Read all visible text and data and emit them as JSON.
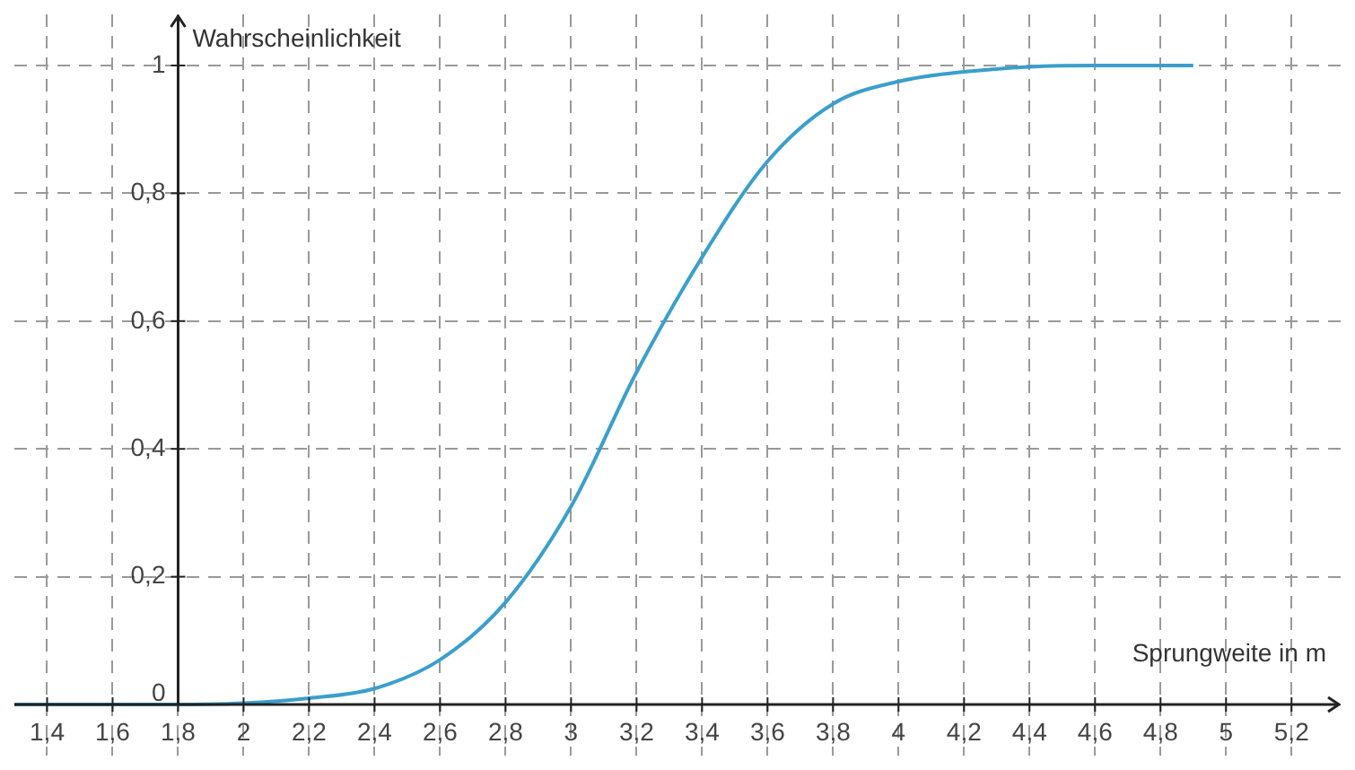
{
  "chart_data": {
    "type": "line",
    "xlabel": "Sprungweite in m",
    "ylabel": "Wahrscheinlichkeit",
    "series": [
      {
        "color": "#3a9fcc",
        "x": [
          1.3,
          1.8,
          2.0,
          2.2,
          2.4,
          2.6,
          2.8,
          3.0,
          3.2,
          3.4,
          3.6,
          3.8,
          4.0,
          4.2,
          4.4,
          4.6,
          4.9
        ],
        "values": [
          0,
          0,
          0.002,
          0.01,
          0.025,
          0.07,
          0.16,
          0.31,
          0.52,
          0.7,
          0.85,
          0.94,
          0.975,
          0.99,
          0.998,
          1,
          1
        ]
      }
    ],
    "xlim": [
      1.3,
      5.35
    ],
    "ylim": [
      -0.08,
      1.08
    ],
    "xticks": [
      {
        "value": 1.4,
        "label": "1,4"
      },
      {
        "value": 1.6,
        "label": "1,6"
      },
      {
        "value": 1.8,
        "label": "1,8"
      },
      2,
      {
        "value": 2.2,
        "label": "2,2"
      },
      {
        "value": 2.4,
        "label": "2,4"
      },
      {
        "value": 2.6,
        "label": "2,6"
      },
      {
        "value": 2.8,
        "label": "2,8"
      },
      3,
      {
        "value": 3.2,
        "label": "3,2"
      },
      {
        "value": 3.4,
        "label": "3,4"
      },
      {
        "value": 3.6,
        "label": "3,6"
      },
      {
        "value": 3.8,
        "label": "3,8"
      },
      4,
      {
        "value": 4.2,
        "label": "4,2"
      },
      {
        "value": 4.4,
        "label": "4,4"
      },
      {
        "value": 4.6,
        "label": "4,6"
      },
      {
        "value": 4.8,
        "label": "4,8"
      },
      5,
      {
        "value": 5.2,
        "label": "5,2"
      }
    ],
    "yticks": [
      0,
      {
        "value": 0.2,
        "label": "0,2"
      },
      {
        "value": 0.4,
        "label": "0,4"
      },
      {
        "value": 0.6,
        "label": "0,6"
      },
      {
        "value": 0.8,
        "label": "0,8"
      },
      1
    ],
    "grid": true,
    "legend": false,
    "marker": "none",
    "line_style": "solid"
  }
}
